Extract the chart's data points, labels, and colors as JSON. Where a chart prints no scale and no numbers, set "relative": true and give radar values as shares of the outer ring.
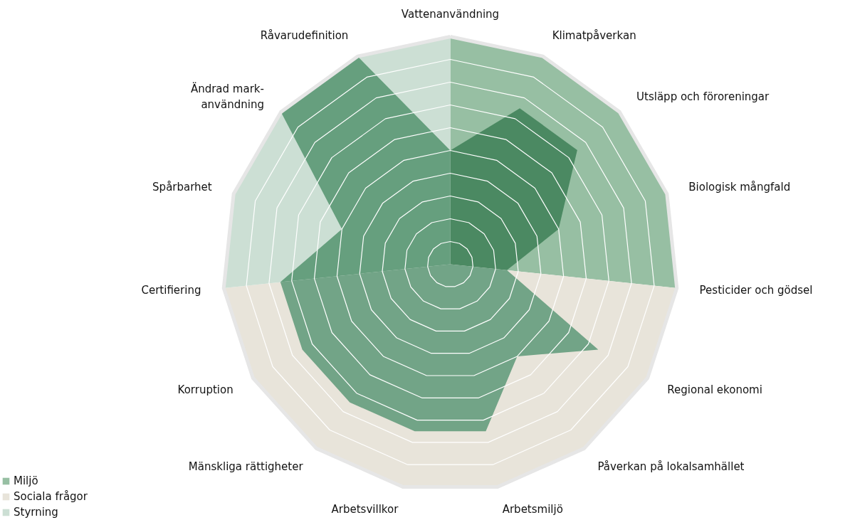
{
  "chart_data": {
    "type": "radar",
    "relative": true,
    "grid": true,
    "legend": "bottom left",
    "categories": [
      "Vattenanvändning",
      "Klimatpåverkan",
      "Utsläpp och föroreningar",
      "Biologisk mångfald",
      "Pesticider och gödsel",
      "Regional ekonomi",
      "Påverkan på lokalsamhället",
      "Arbetsmiljö",
      "Arbetsvillkor",
      "Mänskliga rättigheter",
      "Korruption",
      "Certifiering",
      "Spårbarhet",
      "Ändrad mark-\nanvändning",
      "Råvarudefinition"
    ],
    "series": [
      {
        "name": "Miljö",
        "color": "#97bfa3",
        "values": [
          1,
          1,
          1,
          1,
          1,
          null,
          null,
          null,
          null,
          null,
          null,
          null,
          null,
          null,
          null
        ]
      },
      {
        "name": "Sociala frågor",
        "color": "#e8e4da",
        "values": [
          null,
          null,
          null,
          null,
          1,
          1,
          1,
          1,
          1,
          1,
          1,
          1,
          null,
          null,
          null
        ]
      },
      {
        "name": "Styrning",
        "color": "#ccdfd4",
        "values": [
          1,
          null,
          null,
          null,
          null,
          null,
          null,
          null,
          null,
          null,
          null,
          1,
          1,
          1,
          1
        ]
      },
      {
        "color": "#4b8962",
        "values": [
          0.5,
          0.75,
          0.75,
          0.5,
          0.25,
          null,
          null,
          null,
          null,
          null,
          null,
          null,
          null,
          null,
          null
        ]
      },
      {
        "color": "#72a487",
        "values": [
          null,
          null,
          null,
          null,
          0.25,
          0.75,
          0.5,
          0.75,
          0.75,
          0.75,
          0.75,
          0.75,
          null,
          null,
          null
        ]
      },
      {
        "color": "#669f7e",
        "values": [
          0.5,
          null,
          null,
          null,
          null,
          null,
          null,
          null,
          null,
          null,
          null,
          0.75,
          0.5,
          1,
          1
        ]
      }
    ]
  }
}
